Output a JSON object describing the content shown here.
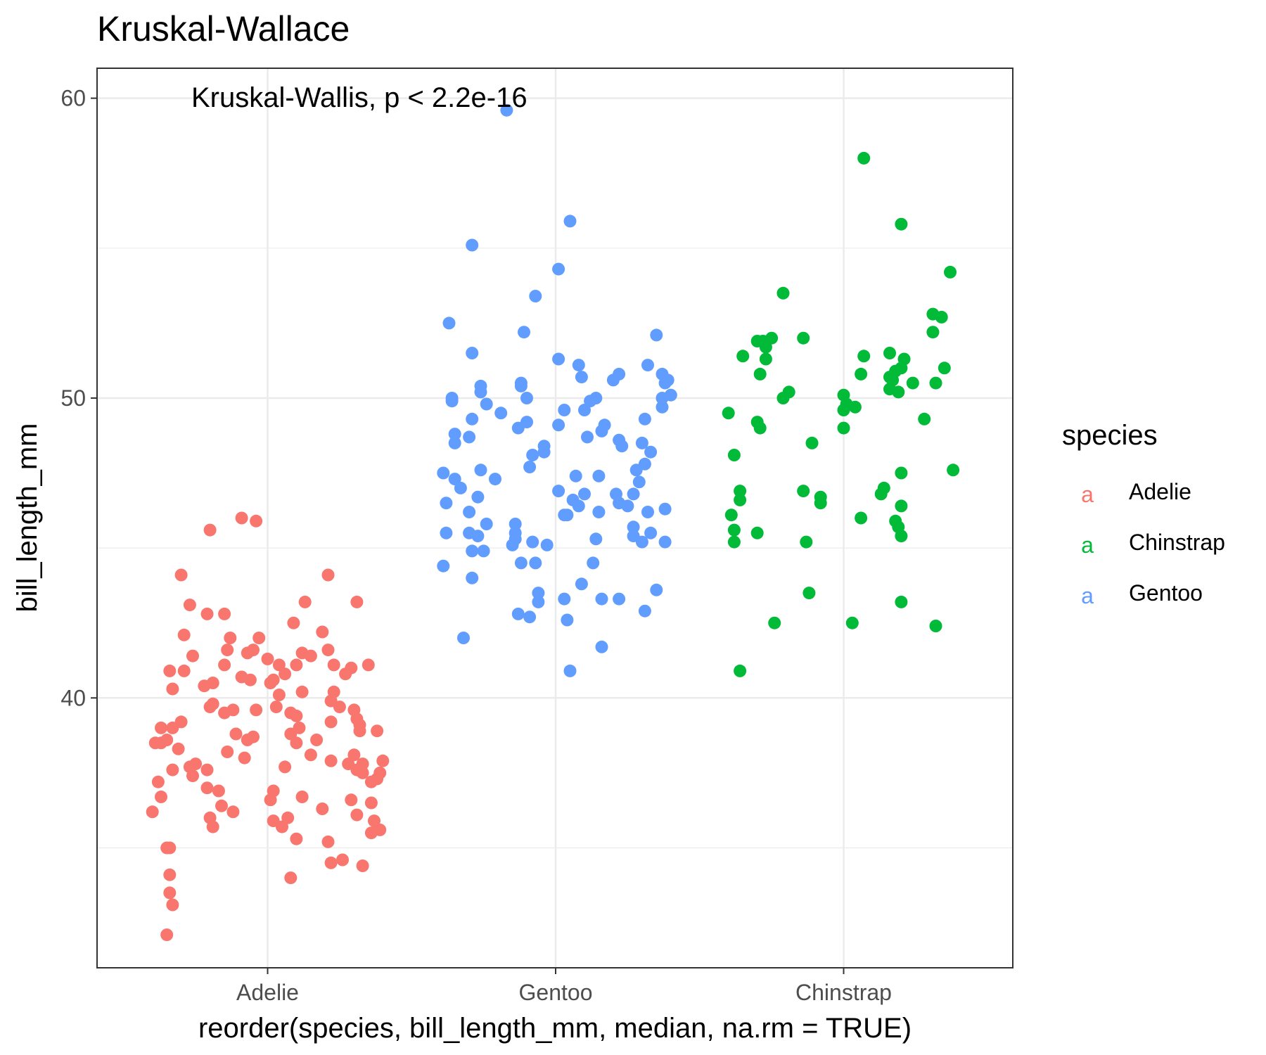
{
  "chart_data": {
    "type": "scatter",
    "title": "Kruskal-Wallace",
    "annotation": "Kruskal-Wallis, p < 2.2e-16",
    "xlabel": "reorder(species, bill_length_mm, median, na.rm = TRUE)",
    "ylabel": "bill_length_mm",
    "categories": [
      "Adelie",
      "Gentoo",
      "Chinstrap"
    ],
    "ylim": [
      31.0,
      61.0
    ],
    "yticks": [
      40,
      50,
      60
    ],
    "grid": true,
    "legend": {
      "title": "species",
      "position": "right",
      "items": [
        {
          "label": "Adelie",
          "key": "a",
          "color": "#F8766D"
        },
        {
          "label": "Chinstrap",
          "key": "a",
          "color": "#00BA38"
        },
        {
          "label": "Gentoo",
          "key": "a",
          "color": "#619CFF"
        }
      ]
    },
    "series": [
      {
        "name": "Adelie",
        "category": "Adelie",
        "color": "#F8766D",
        "values": [
          45.6,
          46.0,
          45.9,
          44.1,
          44.1,
          43.2,
          43.1,
          43.2,
          42.8,
          42.5,
          42.8,
          42.2,
          42.1,
          42.0,
          42.0,
          41.6,
          41.5,
          41.6,
          41.4,
          41.6,
          41.5,
          41.4,
          41.3,
          41.1,
          41.1,
          41.1,
          40.9,
          41.1,
          41.1,
          41.0,
          40.8,
          40.9,
          40.7,
          40.8,
          40.6,
          40.6,
          40.4,
          40.5,
          40.5,
          40.3,
          40.2,
          40.2,
          40.1,
          39.9,
          39.8,
          39.7,
          39.7,
          39.6,
          39.6,
          39.5,
          39.7,
          39.6,
          39.3,
          39.4,
          39.5,
          39.2,
          39.2,
          39.1,
          39.0,
          39.0,
          39.0,
          38.9,
          38.9,
          38.8,
          38.8,
          38.7,
          38.6,
          38.6,
          38.6,
          38.5,
          38.5,
          38.5,
          38.3,
          38.1,
          38.2,
          38.0,
          38.1,
          37.9,
          37.9,
          37.8,
          37.7,
          37.8,
          37.7,
          37.6,
          37.8,
          37.6,
          37.5,
          37.6,
          37.5,
          37.4,
          37.3,
          37.2,
          37.2,
          37.0,
          36.9,
          36.9,
          36.7,
          36.6,
          36.7,
          36.5,
          36.6,
          36.4,
          36.3,
          36.2,
          36.2,
          36.0,
          36.0,
          36.1,
          35.9,
          35.9,
          35.7,
          35.7,
          35.6,
          35.5,
          35.3,
          35.2,
          35.0,
          35.0,
          34.6,
          34.5,
          34.4,
          34.1,
          34.0,
          33.5,
          33.1,
          32.1
        ],
        "offsets": [
          -0.2,
          -0.09,
          -0.04,
          0.21,
          -0.3,
          0.13,
          -0.27,
          0.31,
          -0.21,
          0.09,
          -0.15,
          0.19,
          -0.29,
          -0.13,
          -0.03,
          -0.14,
          -0.07,
          0.21,
          -0.26,
          -0.05,
          0.12,
          0.15,
          0.0,
          -0.15,
          0.04,
          0.1,
          -0.34,
          0.23,
          0.35,
          0.29,
          0.06,
          -0.29,
          -0.09,
          0.27,
          -0.06,
          0.02,
          -0.22,
          0.01,
          -0.19,
          -0.33,
          0.12,
          0.23,
          0.04,
          0.22,
          -0.19,
          -0.2,
          0.03,
          -0.04,
          -0.12,
          0.08,
          0.25,
          0.3,
          0.31,
          0.1,
          -0.15,
          -0.3,
          0.22,
          0.32,
          0.11,
          -0.37,
          -0.33,
          0.32,
          0.38,
          0.08,
          -0.11,
          -0.05,
          -0.35,
          0.17,
          -0.07,
          -0.37,
          -0.39,
          0.1,
          -0.31,
          0.3,
          -0.14,
          -0.08,
          0.15,
          0.4,
          0.22,
          0.33,
          0.06,
          -0.25,
          -0.27,
          -0.21,
          0.28,
          -0.33,
          0.39,
          0.31,
          0.33,
          -0.26,
          0.38,
          0.36,
          -0.38,
          -0.21,
          -0.17,
          0.02,
          -0.37,
          0.01,
          0.12,
          0.36,
          0.29,
          -0.16,
          0.19,
          -0.12,
          -0.4,
          0.07,
          -0.2,
          0.31,
          0.02,
          0.37,
          -0.19,
          0.05,
          0.39,
          0.36,
          0.1,
          0.21,
          -0.35,
          -0.34,
          0.26,
          0.22,
          0.33,
          -0.34,
          0.08,
          -0.34,
          -0.33,
          -0.35,
          0.15,
          -0.31,
          0.4
        ]
      },
      {
        "name": "Gentoo",
        "category": "Gentoo",
        "color": "#619CFF",
        "values": [
          59.6,
          55.9,
          55.1,
          54.3,
          53.4,
          52.5,
          52.2,
          52.1,
          51.5,
          51.3,
          51.1,
          51.1,
          50.8,
          50.7,
          50.8,
          50.6,
          50.6,
          50.5,
          50.5,
          50.4,
          50.4,
          50.2,
          50.1,
          50.0,
          49.9,
          50.0,
          50.0,
          50.0,
          49.9,
          49.8,
          49.7,
          49.6,
          49.5,
          49.6,
          49.3,
          49.3,
          49.2,
          49.1,
          49.1,
          49.0,
          48.9,
          48.8,
          48.7,
          48.7,
          48.6,
          48.5,
          48.5,
          48.4,
          48.4,
          48.2,
          48.2,
          48.1,
          47.8,
          47.7,
          47.6,
          47.6,
          47.5,
          47.4,
          47.3,
          47.3,
          47.4,
          47.2,
          47.0,
          46.9,
          46.8,
          46.8,
          46.8,
          46.7,
          46.6,
          46.5,
          46.5,
          46.4,
          46.4,
          46.3,
          46.2,
          46.2,
          46.2,
          46.1,
          46.1,
          45.8,
          45.8,
          45.7,
          45.5,
          45.5,
          45.5,
          45.5,
          45.4,
          45.4,
          45.3,
          45.3,
          45.2,
          45.2,
          45.2,
          45.1,
          45.1,
          44.9,
          44.9,
          44.5,
          44.5,
          44.5,
          44.4,
          44.0,
          43.8,
          43.6,
          43.5,
          43.3,
          43.3,
          43.3,
          43.2,
          42.9,
          42.8,
          42.7,
          42.6,
          42.0,
          41.7,
          40.9
        ],
        "offsets": [
          -0.17,
          0.05,
          -0.29,
          0.01,
          -0.07,
          -0.37,
          -0.11,
          0.35,
          -0.29,
          0.01,
          0.08,
          0.32,
          0.22,
          0.09,
          0.37,
          0.39,
          0.2,
          -0.12,
          0.38,
          -0.26,
          -0.12,
          -0.26,
          0.4,
          0.37,
          0.12,
          0.14,
          -0.36,
          -0.1,
          -0.36,
          -0.24,
          0.37,
          0.03,
          -0.19,
          0.1,
          0.31,
          -0.29,
          -0.1,
          0.17,
          0.01,
          -0.13,
          0.16,
          -0.35,
          -0.3,
          0.11,
          0.22,
          -0.35,
          0.3,
          -0.04,
          0.23,
          -0.04,
          0.33,
          -0.08,
          0.31,
          -0.09,
          0.28,
          -0.26,
          -0.39,
          0.15,
          -0.35,
          -0.21,
          0.07,
          0.29,
          -0.33,
          0.01,
          0.1,
          0.21,
          0.27,
          -0.27,
          0.06,
          -0.38,
          0.22,
          0.25,
          0.08,
          0.38,
          -0.3,
          0.15,
          0.32,
          0.04,
          0.03,
          -0.14,
          -0.24,
          0.27,
          -0.3,
          0.33,
          -0.14,
          -0.38,
          -0.27,
          0.27,
          0.14,
          -0.14,
          -0.08,
          0.3,
          0.38,
          -0.03,
          -0.15,
          -0.25,
          -0.29,
          -0.12,
          -0.07,
          0.13,
          -0.39,
          -0.29,
          0.09,
          0.35,
          -0.06,
          0.03,
          0.16,
          0.22,
          -0.06,
          0.31,
          -0.13,
          -0.09,
          0.04,
          -0.32,
          0.16,
          0.05
        ]
      },
      {
        "name": "Chinstrap",
        "category": "Chinstrap",
        "color": "#00BA38",
        "values": [
          58.0,
          55.8,
          54.2,
          53.5,
          52.8,
          52.7,
          52.2,
          52.0,
          52.0,
          51.9,
          51.9,
          51.7,
          51.5,
          51.4,
          51.4,
          51.3,
          51.3,
          51.0,
          51.0,
          50.9,
          50.8,
          50.8,
          50.7,
          50.6,
          50.5,
          50.5,
          50.3,
          50.2,
          50.2,
          50.1,
          50.0,
          49.8,
          49.7,
          49.6,
          49.5,
          49.3,
          49.2,
          49.0,
          49.0,
          48.5,
          48.1,
          47.6,
          47.5,
          47.0,
          46.9,
          46.9,
          46.8,
          46.7,
          46.6,
          46.5,
          46.4,
          46.1,
          46.0,
          45.9,
          45.7,
          45.6,
          45.5,
          45.4,
          45.2,
          45.2,
          43.5,
          43.2,
          42.5,
          42.5,
          42.4,
          40.9
        ],
        "offsets": [
          0.07,
          0.2,
          0.37,
          -0.21,
          0.31,
          0.34,
          0.31,
          -0.25,
          -0.14,
          -0.3,
          -0.28,
          -0.27,
          0.16,
          0.07,
          -0.35,
          0.21,
          -0.27,
          0.35,
          0.2,
          0.18,
          -0.29,
          0.06,
          0.16,
          0.17,
          0.32,
          0.24,
          0.16,
          0.19,
          -0.19,
          0.0,
          -0.21,
          0.01,
          0.04,
          0.0,
          -0.4,
          0.28,
          -0.3,
          0.0,
          -0.29,
          -0.11,
          -0.38,
          0.38,
          0.2,
          0.14,
          -0.36,
          -0.14,
          0.13,
          -0.08,
          -0.36,
          -0.08,
          0.2,
          -0.39,
          0.06,
          0.18,
          0.19,
          -0.38,
          -0.3,
          0.2,
          -0.13,
          -0.38,
          -0.12,
          0.2,
          -0.24,
          0.03,
          0.32,
          -0.36
        ]
      }
    ]
  }
}
